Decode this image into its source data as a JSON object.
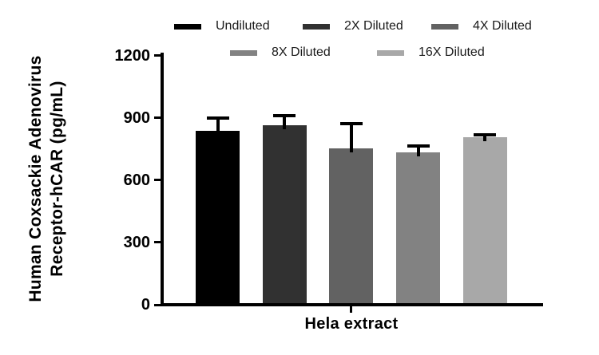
{
  "figure": {
    "background": "#ffffff",
    "text_color": "#000000"
  },
  "chart_data": {
    "type": "bar",
    "title": "",
    "y_axis": {
      "label_line1": "Human Coxsackie Adenovirus",
      "label_line2": "Receptor-hCAR (pg/mL)",
      "range": [
        0,
        1200
      ],
      "ticks": [
        0,
        300,
        600,
        900,
        1200
      ]
    },
    "x_axis": {
      "categories": [
        "Hela extract"
      ]
    },
    "series": [
      {
        "name": "Undiluted",
        "value": 830,
        "error_sd_plus": 62,
        "color": "#000000"
      },
      {
        "name": "2X Diluted",
        "value": 855,
        "error_sd_plus": 47,
        "color": "#313131"
      },
      {
        "name": "4X Diluted",
        "value": 745,
        "error_sd_plus": 119,
        "color": "#626262"
      },
      {
        "name": "8X Diluted",
        "value": 726,
        "error_sd_plus": 32,
        "color": "#828282"
      },
      {
        "name": "16X Diluted",
        "value": 799,
        "error_sd_plus": 10,
        "color": "#a8a8a8"
      }
    ],
    "error_bar_color": "#000000",
    "axis_color": "#000000",
    "grid": false,
    "legend_position": "top",
    "legend_rows": [
      [
        0,
        1,
        2
      ],
      [
        3,
        4
      ]
    ]
  }
}
